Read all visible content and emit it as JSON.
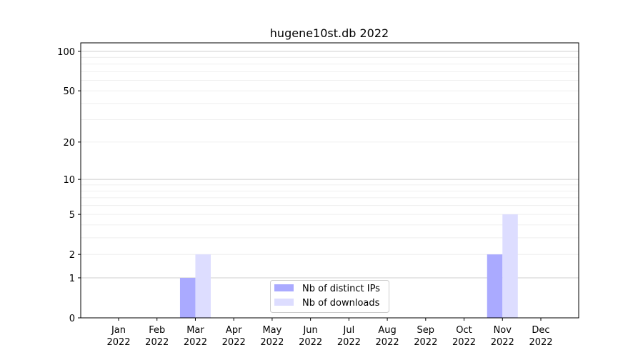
{
  "chart_data": {
    "type": "bar",
    "title": "hugene10st.db 2022",
    "xlabel": "",
    "ylabel": "",
    "yscale": "symlog",
    "ylim": [
      0,
      116
    ],
    "yticks": [
      0,
      1,
      2,
      5,
      10,
      20,
      50,
      100
    ],
    "grid": true,
    "legend_position": "lower-center",
    "categories": [
      [
        "Jan",
        "2022"
      ],
      [
        "Feb",
        "2022"
      ],
      [
        "Mar",
        "2022"
      ],
      [
        "Apr",
        "2022"
      ],
      [
        "May",
        "2022"
      ],
      [
        "Jun",
        "2022"
      ],
      [
        "Jul",
        "2022"
      ],
      [
        "Aug",
        "2022"
      ],
      [
        "Sep",
        "2022"
      ],
      [
        "Oct",
        "2022"
      ],
      [
        "Nov",
        "2022"
      ],
      [
        "Dec",
        "2022"
      ]
    ],
    "series": [
      {
        "name": "Nb of distinct IPs",
        "color": "#aaaaff",
        "values": [
          0,
          0,
          1,
          0,
          0,
          0,
          0,
          0,
          0,
          0,
          2,
          0
        ]
      },
      {
        "name": "Nb of downloads",
        "color": "#ddddff",
        "values": [
          0,
          0,
          2,
          0,
          0,
          0,
          0,
          0,
          0,
          0,
          5,
          0
        ]
      }
    ]
  }
}
